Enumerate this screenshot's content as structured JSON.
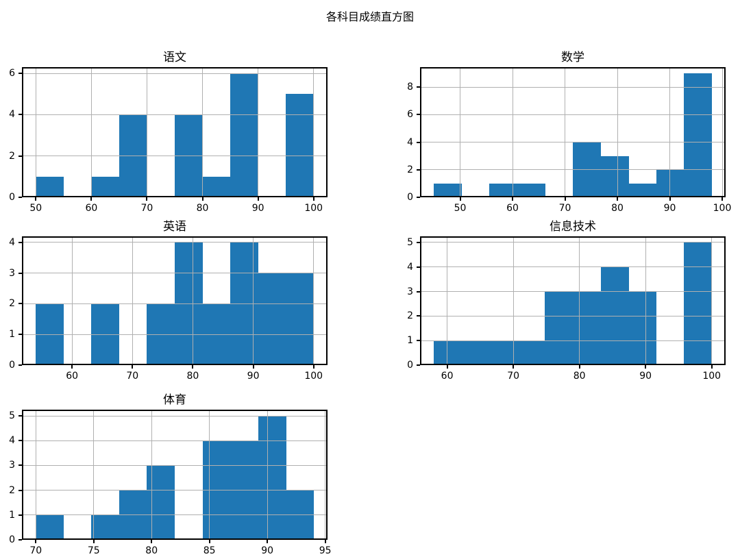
{
  "figure": {
    "suptitle": "各科目成绩直方图"
  },
  "style": {
    "bar_color": "#1f77b4",
    "grid_color": "#b0b0b0",
    "spine_color": "#000000",
    "text_color": "#000000",
    "background": "#ffffff"
  },
  "chart_data": [
    {
      "type": "histogram",
      "title": "语文",
      "bin_edges": [
        50,
        55,
        60,
        65,
        70,
        75,
        80,
        85,
        90,
        95,
        100
      ],
      "counts": [
        1,
        0,
        1,
        4,
        0,
        4,
        1,
        6,
        0,
        5
      ],
      "xticks": [
        50,
        60,
        70,
        80,
        90,
        100
      ],
      "yticks": [
        0,
        2,
        4,
        6
      ],
      "xlim": [
        47.5,
        102.5
      ],
      "ylim": [
        0,
        6.3
      ],
      "grid": true,
      "legend": null
    },
    {
      "type": "histogram",
      "title": "数学",
      "bin_edges": [
        45,
        50.3,
        55.6,
        60.9,
        66.2,
        71.5,
        76.8,
        82.1,
        87.4,
        92.7,
        98
      ],
      "counts": [
        1,
        0,
        1,
        1,
        0,
        4,
        3,
        1,
        2,
        9
      ],
      "xticks": [
        50,
        60,
        70,
        80,
        90,
        100
      ],
      "yticks": [
        0,
        2,
        4,
        6,
        8
      ],
      "xlim": [
        42.35,
        100.65
      ],
      "ylim": [
        0,
        9.45
      ],
      "grid": true,
      "legend": null
    },
    {
      "type": "histogram",
      "title": "英语",
      "bin_edges": [
        54,
        58.6,
        63.2,
        67.8,
        72.4,
        77,
        81.6,
        86.2,
        90.8,
        95.4,
        100
      ],
      "counts": [
        2,
        0,
        2,
        0,
        2,
        4,
        2,
        4,
        3,
        3
      ],
      "xticks": [
        60,
        70,
        80,
        90,
        100
      ],
      "yticks": [
        0,
        1,
        2,
        3,
        4
      ],
      "xlim": [
        51.7,
        102.3
      ],
      "ylim": [
        0,
        4.2
      ],
      "grid": true,
      "legend": null
    },
    {
      "type": "histogram",
      "title": "信息技术",
      "bin_edges": [
        58,
        62.2,
        66.4,
        70.6,
        74.8,
        79,
        83.2,
        87.4,
        91.6,
        95.8,
        100
      ],
      "counts": [
        1,
        1,
        1,
        1,
        3,
        3,
        4,
        3,
        0,
        5
      ],
      "xticks": [
        60,
        70,
        80,
        90,
        100
      ],
      "yticks": [
        0,
        1,
        2,
        3,
        4,
        5
      ],
      "xlim": [
        55.9,
        102.1
      ],
      "ylim": [
        0,
        5.25
      ],
      "grid": true,
      "legend": null
    },
    {
      "type": "histogram",
      "title": "体育",
      "bin_edges": [
        70,
        72.4,
        74.8,
        77.2,
        79.6,
        82,
        84.4,
        86.8,
        89.2,
        91.6,
        94
      ],
      "counts": [
        1,
        0,
        1,
        2,
        3,
        0,
        4,
        4,
        5,
        2
      ],
      "xticks": [
        70,
        75,
        80,
        85,
        90,
        95
      ],
      "yticks": [
        0,
        1,
        2,
        3,
        4,
        5
      ],
      "xlim": [
        68.8,
        95.2
      ],
      "ylim": [
        0,
        5.25
      ],
      "grid": true,
      "legend": null
    }
  ]
}
